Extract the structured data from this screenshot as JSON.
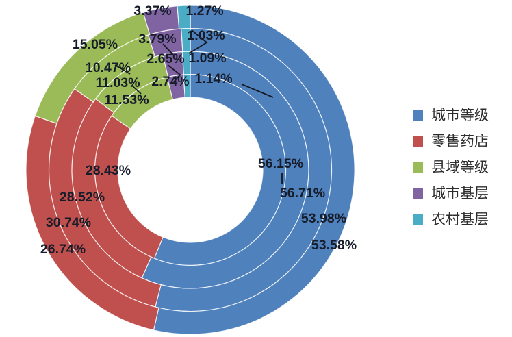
{
  "chart_data": {
    "type": "donut",
    "title": "",
    "description_layout": "nested doughnut with 4 rings listed inner-to-outer; segments start at 12 o'clock and run clockwise",
    "categories": [
      "城市等级",
      "零售药店",
      "县域等级",
      "城市基层",
      "农村基层"
    ],
    "colors": [
      "#4F81BD",
      "#C0504D",
      "#9BBB59",
      "#8064A2",
      "#4BACC6"
    ],
    "series": [
      {
        "ring": "ring-1-inner",
        "values": [
          56.15,
          28.43,
          11.53,
          2.74,
          1.14
        ]
      },
      {
        "ring": "ring-2",
        "values": [
          56.71,
          28.52,
          11.03,
          2.65,
          1.09
        ]
      },
      {
        "ring": "ring-3",
        "values": [
          53.98,
          30.74,
          10.47,
          3.79,
          1.03
        ]
      },
      {
        "ring": "ring-4-outer",
        "values": [
          53.58,
          26.74,
          15.05,
          3.37,
          1.27
        ]
      }
    ],
    "label_format": "0.00%",
    "label_color": "#161c29",
    "legend_position": "right",
    "legend": [
      {
        "label": "城市等级",
        "color": "#4F81BD"
      },
      {
        "label": "零售药店",
        "color": "#C0504D"
      },
      {
        "label": "县域等级",
        "color": "#9BBB59"
      },
      {
        "label": "城市基层",
        "color": "#8064A2"
      },
      {
        "label": "农村基层",
        "color": "#4BACC6"
      }
    ],
    "background": "#FFFFFF"
  }
}
